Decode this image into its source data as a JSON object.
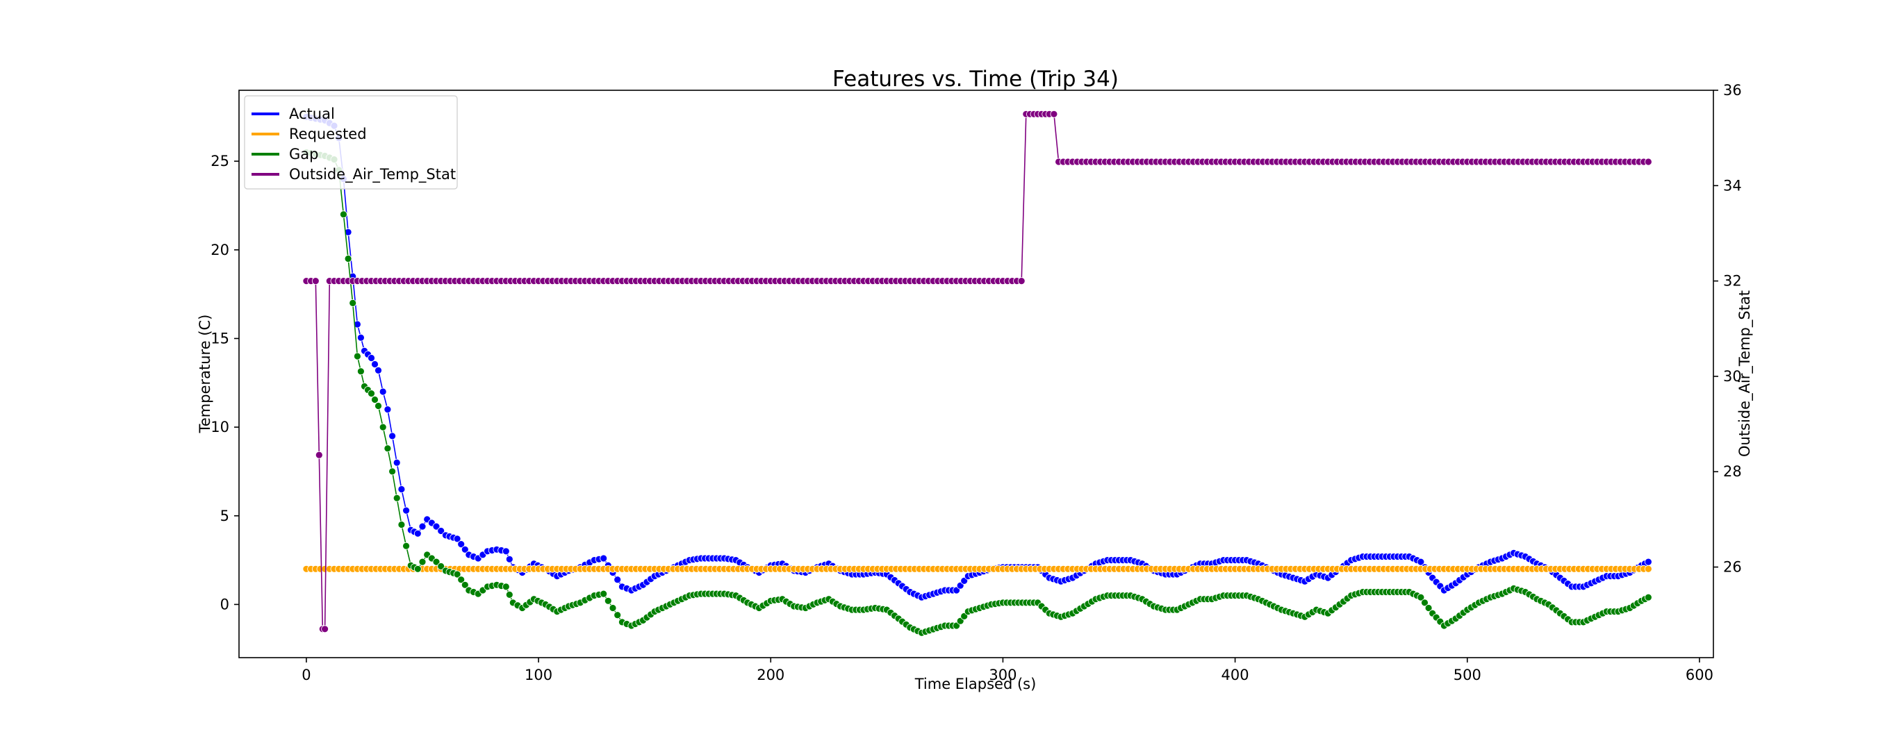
{
  "chart_data": {
    "type": "line",
    "title": "Features vs. Time (Trip 34)",
    "xlabel": "Time Elapsed (s)",
    "ylabel": "Temperature (C)",
    "y2label": "Outside_Air_Temp_Stat",
    "xlim": [
      -29,
      606
    ],
    "ylim": [
      -3.0,
      29.0
    ],
    "y2lim": [
      24.1,
      36.0
    ],
    "xticks": [
      0,
      100,
      200,
      300,
      400,
      500,
      600
    ],
    "yticks": [
      0,
      5,
      10,
      15,
      20,
      25
    ],
    "y2ticks": [
      26,
      28,
      30,
      32,
      34,
      36
    ],
    "grid": false,
    "legend_position": "top-left",
    "series": [
      {
        "name": "Actual",
        "axis": "left",
        "color": "#0000ff",
        "points": [
          [
            0,
            27.5
          ],
          [
            8,
            27.3
          ],
          [
            12,
            27.0
          ],
          [
            14,
            26.3
          ],
          [
            16,
            24.0
          ],
          [
            18,
            21.0
          ],
          [
            20,
            18.5
          ],
          [
            22,
            15.8
          ],
          [
            25,
            14.3
          ],
          [
            28,
            13.9
          ],
          [
            31,
            13.2
          ],
          [
            33,
            12.0
          ],
          [
            35,
            11.0
          ],
          [
            37,
            9.5
          ],
          [
            39,
            8.0
          ],
          [
            41,
            6.5
          ],
          [
            43,
            5.3
          ],
          [
            45,
            4.2
          ],
          [
            48,
            4.0
          ],
          [
            52,
            4.8
          ],
          [
            56,
            4.4
          ],
          [
            60,
            3.9
          ],
          [
            65,
            3.7
          ],
          [
            70,
            2.8
          ],
          [
            74,
            2.6
          ],
          [
            78,
            3.0
          ],
          [
            82,
            3.1
          ],
          [
            86,
            3.0
          ],
          [
            89,
            2.1
          ],
          [
            93,
            1.8
          ],
          [
            98,
            2.3
          ],
          [
            103,
            2.0
          ],
          [
            108,
            1.6
          ],
          [
            113,
            1.9
          ],
          [
            118,
            2.1
          ],
          [
            124,
            2.5
          ],
          [
            128,
            2.6
          ],
          [
            132,
            1.8
          ],
          [
            136,
            1.0
          ],
          [
            140,
            0.8
          ],
          [
            145,
            1.1
          ],
          [
            150,
            1.6
          ],
          [
            155,
            1.9
          ],
          [
            160,
            2.2
          ],
          [
            165,
            2.5
          ],
          [
            170,
            2.6
          ],
          [
            175,
            2.6
          ],
          [
            180,
            2.6
          ],
          [
            185,
            2.5
          ],
          [
            190,
            2.1
          ],
          [
            195,
            1.8
          ],
          [
            200,
            2.2
          ],
          [
            205,
            2.3
          ],
          [
            210,
            1.9
          ],
          [
            215,
            1.8
          ],
          [
            220,
            2.1
          ],
          [
            225,
            2.3
          ],
          [
            230,
            1.9
          ],
          [
            235,
            1.7
          ],
          [
            240,
            1.7
          ],
          [
            245,
            1.8
          ],
          [
            250,
            1.7
          ],
          [
            255,
            1.2
          ],
          [
            260,
            0.7
          ],
          [
            265,
            0.4
          ],
          [
            270,
            0.6
          ],
          [
            275,
            0.8
          ],
          [
            280,
            0.8
          ],
          [
            285,
            1.6
          ],
          [
            290,
            1.8
          ],
          [
            295,
            2.0
          ],
          [
            300,
            2.1
          ],
          [
            305,
            2.1
          ],
          [
            310,
            2.1
          ],
          [
            315,
            2.1
          ],
          [
            320,
            1.5
          ],
          [
            325,
            1.3
          ],
          [
            330,
            1.5
          ],
          [
            335,
            1.9
          ],
          [
            340,
            2.3
          ],
          [
            345,
            2.5
          ],
          [
            350,
            2.5
          ],
          [
            355,
            2.5
          ],
          [
            360,
            2.3
          ],
          [
            365,
            1.9
          ],
          [
            370,
            1.7
          ],
          [
            375,
            1.7
          ],
          [
            380,
            2.0
          ],
          [
            385,
            2.3
          ],
          [
            390,
            2.3
          ],
          [
            395,
            2.5
          ],
          [
            400,
            2.5
          ],
          [
            405,
            2.5
          ],
          [
            410,
            2.3
          ],
          [
            415,
            2.0
          ],
          [
            420,
            1.7
          ],
          [
            425,
            1.5
          ],
          [
            430,
            1.3
          ],
          [
            435,
            1.7
          ],
          [
            440,
            1.5
          ],
          [
            445,
            2.0
          ],
          [
            450,
            2.5
          ],
          [
            455,
            2.7
          ],
          [
            460,
            2.7
          ],
          [
            465,
            2.7
          ],
          [
            470,
            2.7
          ],
          [
            475,
            2.7
          ],
          [
            480,
            2.4
          ],
          [
            485,
            1.5
          ],
          [
            490,
            0.8
          ],
          [
            495,
            1.2
          ],
          [
            500,
            1.7
          ],
          [
            505,
            2.1
          ],
          [
            510,
            2.4
          ],
          [
            515,
            2.6
          ],
          [
            520,
            2.9
          ],
          [
            525,
            2.7
          ],
          [
            530,
            2.3
          ],
          [
            535,
            2.0
          ],
          [
            540,
            1.5
          ],
          [
            545,
            1.0
          ],
          [
            550,
            1.0
          ],
          [
            555,
            1.3
          ],
          [
            560,
            1.6
          ],
          [
            565,
            1.6
          ],
          [
            570,
            1.8
          ],
          [
            575,
            2.2
          ],
          [
            578,
            2.4
          ]
        ]
      },
      {
        "name": "Requested",
        "axis": "left",
        "color": "#ffa500",
        "points": [
          [
            0,
            2.0
          ],
          [
            20,
            2.0
          ],
          [
            40,
            2.0
          ],
          [
            60,
            2.0
          ],
          [
            80,
            2.0
          ],
          [
            100,
            2.0
          ],
          [
            120,
            2.0
          ],
          [
            140,
            2.0
          ],
          [
            160,
            2.0
          ],
          [
            180,
            2.0
          ],
          [
            200,
            2.0
          ],
          [
            220,
            2.0
          ],
          [
            240,
            2.0
          ],
          [
            260,
            2.0
          ],
          [
            280,
            2.0
          ],
          [
            300,
            2.0
          ],
          [
            320,
            2.0
          ],
          [
            340,
            2.0
          ],
          [
            360,
            2.0
          ],
          [
            380,
            2.0
          ],
          [
            400,
            2.0
          ],
          [
            420,
            2.0
          ],
          [
            440,
            2.0
          ],
          [
            460,
            2.0
          ],
          [
            480,
            2.0
          ],
          [
            500,
            2.0
          ],
          [
            520,
            2.0
          ],
          [
            540,
            2.0
          ],
          [
            560,
            2.0
          ],
          [
            578,
            2.0
          ]
        ]
      },
      {
        "name": "Gap",
        "axis": "left",
        "color": "#008000",
        "points": [
          [
            0,
            25.5
          ],
          [
            8,
            25.3
          ],
          [
            12,
            25.1
          ],
          [
            14,
            24.5
          ],
          [
            16,
            22.0
          ],
          [
            18,
            19.5
          ],
          [
            20,
            17.0
          ],
          [
            22,
            14.0
          ],
          [
            25,
            12.3
          ],
          [
            28,
            11.9
          ],
          [
            31,
            11.2
          ],
          [
            33,
            10.0
          ],
          [
            35,
            8.8
          ],
          [
            37,
            7.5
          ],
          [
            39,
            6.0
          ],
          [
            41,
            4.5
          ],
          [
            43,
            3.3
          ],
          [
            45,
            2.2
          ],
          [
            48,
            2.0
          ],
          [
            52,
            2.8
          ],
          [
            56,
            2.4
          ],
          [
            60,
            1.9
          ],
          [
            65,
            1.7
          ],
          [
            70,
            0.8
          ],
          [
            74,
            0.6
          ],
          [
            78,
            1.0
          ],
          [
            82,
            1.1
          ],
          [
            86,
            1.0
          ],
          [
            89,
            0.1
          ],
          [
            93,
            -0.2
          ],
          [
            98,
            0.3
          ],
          [
            103,
            0.0
          ],
          [
            108,
            -0.4
          ],
          [
            113,
            -0.1
          ],
          [
            118,
            0.1
          ],
          [
            124,
            0.5
          ],
          [
            128,
            0.6
          ],
          [
            132,
            -0.2
          ],
          [
            136,
            -1.0
          ],
          [
            140,
            -1.2
          ],
          [
            145,
            -0.9
          ],
          [
            150,
            -0.4
          ],
          [
            155,
            -0.1
          ],
          [
            160,
            0.2
          ],
          [
            165,
            0.5
          ],
          [
            170,
            0.6
          ],
          [
            175,
            0.6
          ],
          [
            180,
            0.6
          ],
          [
            185,
            0.5
          ],
          [
            190,
            0.1
          ],
          [
            195,
            -0.2
          ],
          [
            200,
            0.2
          ],
          [
            205,
            0.3
          ],
          [
            210,
            -0.1
          ],
          [
            215,
            -0.2
          ],
          [
            220,
            0.1
          ],
          [
            225,
            0.3
          ],
          [
            230,
            -0.1
          ],
          [
            235,
            -0.3
          ],
          [
            240,
            -0.3
          ],
          [
            245,
            -0.2
          ],
          [
            250,
            -0.3
          ],
          [
            255,
            -0.8
          ],
          [
            260,
            -1.3
          ],
          [
            265,
            -1.6
          ],
          [
            270,
            -1.4
          ],
          [
            275,
            -1.2
          ],
          [
            280,
            -1.2
          ],
          [
            285,
            -0.4
          ],
          [
            290,
            -0.2
          ],
          [
            295,
            0.0
          ],
          [
            300,
            0.1
          ],
          [
            305,
            0.1
          ],
          [
            310,
            0.1
          ],
          [
            315,
            0.1
          ],
          [
            320,
            -0.5
          ],
          [
            325,
            -0.7
          ],
          [
            330,
            -0.5
          ],
          [
            335,
            -0.1
          ],
          [
            340,
            0.3
          ],
          [
            345,
            0.5
          ],
          [
            350,
            0.5
          ],
          [
            355,
            0.5
          ],
          [
            360,
            0.3
          ],
          [
            365,
            -0.1
          ],
          [
            370,
            -0.3
          ],
          [
            375,
            -0.3
          ],
          [
            380,
            0.0
          ],
          [
            385,
            0.3
          ],
          [
            390,
            0.3
          ],
          [
            395,
            0.5
          ],
          [
            400,
            0.5
          ],
          [
            405,
            0.5
          ],
          [
            410,
            0.3
          ],
          [
            415,
            0.0
          ],
          [
            420,
            -0.3
          ],
          [
            425,
            -0.5
          ],
          [
            430,
            -0.7
          ],
          [
            435,
            -0.3
          ],
          [
            440,
            -0.5
          ],
          [
            445,
            0.0
          ],
          [
            450,
            0.5
          ],
          [
            455,
            0.7
          ],
          [
            460,
            0.7
          ],
          [
            465,
            0.7
          ],
          [
            470,
            0.7
          ],
          [
            475,
            0.7
          ],
          [
            480,
            0.4
          ],
          [
            485,
            -0.5
          ],
          [
            490,
            -1.2
          ],
          [
            495,
            -0.8
          ],
          [
            500,
            -0.3
          ],
          [
            505,
            0.1
          ],
          [
            510,
            0.4
          ],
          [
            515,
            0.6
          ],
          [
            520,
            0.9
          ],
          [
            525,
            0.7
          ],
          [
            530,
            0.3
          ],
          [
            535,
            0.0
          ],
          [
            540,
            -0.5
          ],
          [
            545,
            -1.0
          ],
          [
            550,
            -1.0
          ],
          [
            555,
            -0.7
          ],
          [
            560,
            -0.4
          ],
          [
            565,
            -0.4
          ],
          [
            570,
            -0.2
          ],
          [
            575,
            0.2
          ],
          [
            578,
            0.4
          ]
        ]
      },
      {
        "name": "Outside_Air_Temp_Stat",
        "axis": "right",
        "color": "#800080",
        "points": [
          [
            0,
            32.0
          ],
          [
            4,
            32.0
          ],
          [
            7,
            24.7
          ],
          [
            8,
            24.7
          ],
          [
            10,
            32.0
          ],
          [
            50,
            32.0
          ],
          [
            100,
            32.0
          ],
          [
            150,
            32.0
          ],
          [
            200,
            32.0
          ],
          [
            250,
            32.0
          ],
          [
            300,
            32.0
          ],
          [
            308,
            32.0
          ],
          [
            310,
            35.5
          ],
          [
            315,
            35.5
          ],
          [
            320,
            35.5
          ],
          [
            322,
            35.5
          ],
          [
            324,
            34.5
          ],
          [
            350,
            34.5
          ],
          [
            400,
            34.5
          ],
          [
            450,
            34.5
          ],
          [
            500,
            34.5
          ],
          [
            550,
            34.5
          ],
          [
            578,
            34.5
          ]
        ]
      }
    ]
  }
}
